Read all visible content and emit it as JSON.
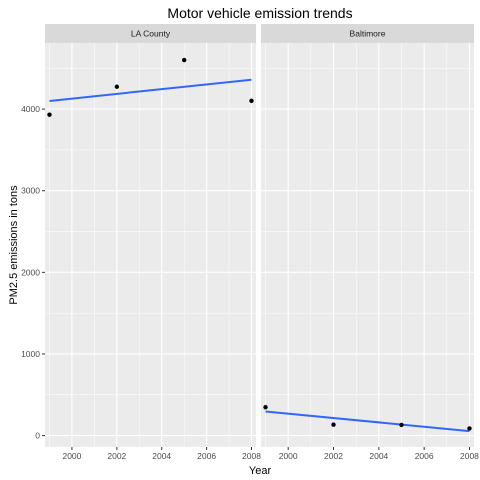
{
  "chart_data": {
    "type": "scatter",
    "title": "Motor vehicle emission trends",
    "xlabel": "Year",
    "ylabel": "PM2.5 emissions in tons",
    "xlim": [
      1998.8,
      2008.2
    ],
    "ylim": [
      -140,
      4810
    ],
    "x_ticks": [
      2000,
      2002,
      2004,
      2006,
      2008
    ],
    "x_minor": [
      1999,
      2001,
      2003,
      2005,
      2007
    ],
    "y_ticks": [
      0,
      1000,
      2000,
      3000,
      4000
    ],
    "y_minor": [
      500,
      1500,
      2500,
      3500,
      4500
    ],
    "grid": true,
    "panel_background": "#ebebeb",
    "strip_background": "#d9d9d9",
    "grid_color": "#ffffff",
    "point_color": "#000000",
    "trend_color": "#3366ff",
    "panels": [
      {
        "label": "LA County",
        "x": [
          1999,
          2002,
          2005,
          2008
        ],
        "y": [
          3931,
          4274,
          4601,
          4101
        ],
        "trend": {
          "x": [
            1999,
            2008
          ],
          "y": [
            4100,
            4360
          ]
        }
      },
      {
        "label": "Baltimore",
        "x": [
          1999,
          2002,
          2005,
          2008
        ],
        "y": [
          347,
          134,
          130,
          88
        ],
        "trend": {
          "x": [
            1999,
            2008
          ],
          "y": [
            295,
            55
          ]
        }
      }
    ]
  }
}
